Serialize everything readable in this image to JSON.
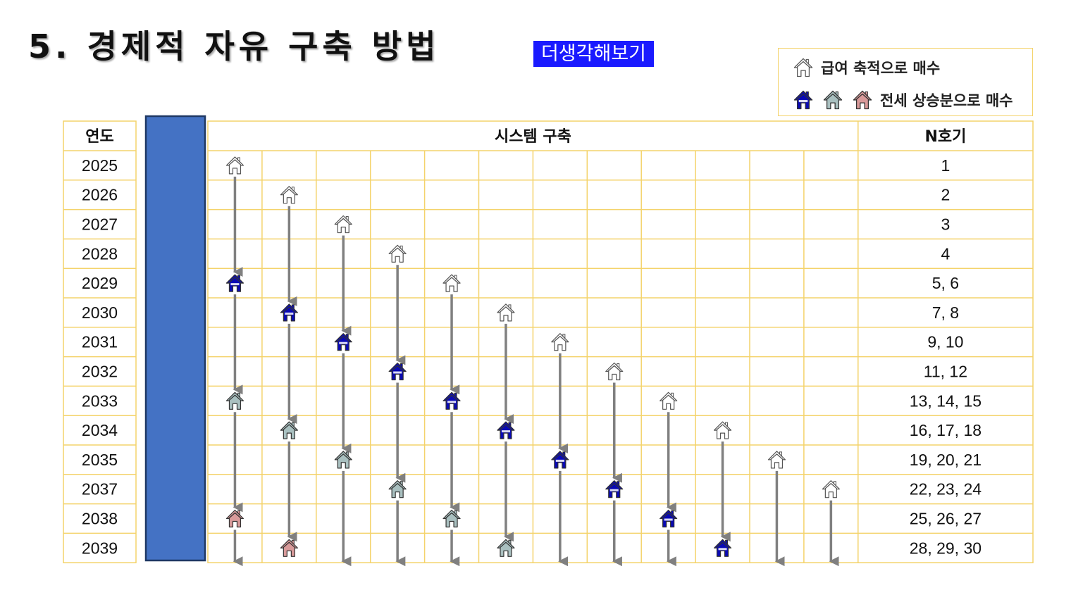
{
  "title": "5. 경제적 자유 구축 방법",
  "tag": "더생각해보기",
  "legend": {
    "row1_label": "급여 축적으로 매수",
    "row2_label": "전세 상승분으로 매수"
  },
  "colors": {
    "grid": "#f4d36b",
    "arrow": "#808080",
    "blue_bar": "#4472c4",
    "blue_bar_border": "#1f3864",
    "tag_bg": "#1a1aff",
    "house_white": "#ffffff",
    "house_navy": "#0a0ab4",
    "house_gray": "#a9c0c0",
    "house_pink": "#d99a9a"
  },
  "table": {
    "header_year": "연도",
    "header_system": "시스템 구축",
    "header_n": "N호기",
    "years": [
      "2025",
      "2026",
      "2027",
      "2028",
      "2029",
      "2030",
      "2031",
      "2032",
      "2033",
      "2034",
      "2035",
      "2037",
      "2038",
      "2039"
    ],
    "n_values": [
      "1",
      "2",
      "3",
      "4",
      "5, 6",
      "7, 8",
      "9, 10",
      "11, 12",
      "13, 14, 15",
      "16, 17, 18",
      "19, 20, 21",
      "22, 23, 24",
      "25, 26, 27",
      "28, 29, 30"
    ]
  },
  "icons": [
    {
      "col": 0,
      "row": 0,
      "type": "white"
    },
    {
      "col": 0,
      "row": 4,
      "type": "navy"
    },
    {
      "col": 0,
      "row": 8,
      "type": "gray"
    },
    {
      "col": 0,
      "row": 12,
      "type": "pink"
    },
    {
      "col": 1,
      "row": 1,
      "type": "white"
    },
    {
      "col": 1,
      "row": 5,
      "type": "navy"
    },
    {
      "col": 1,
      "row": 9,
      "type": "gray"
    },
    {
      "col": 1,
      "row": 13,
      "type": "pink"
    },
    {
      "col": 2,
      "row": 2,
      "type": "white"
    },
    {
      "col": 2,
      "row": 6,
      "type": "navy"
    },
    {
      "col": 2,
      "row": 10,
      "type": "gray"
    },
    {
      "col": 3,
      "row": 3,
      "type": "white"
    },
    {
      "col": 3,
      "row": 7,
      "type": "navy"
    },
    {
      "col": 3,
      "row": 11,
      "type": "gray"
    },
    {
      "col": 4,
      "row": 4,
      "type": "white"
    },
    {
      "col": 4,
      "row": 8,
      "type": "navy"
    },
    {
      "col": 4,
      "row": 12,
      "type": "gray"
    },
    {
      "col": 5,
      "row": 5,
      "type": "white"
    },
    {
      "col": 5,
      "row": 9,
      "type": "navy"
    },
    {
      "col": 5,
      "row": 13,
      "type": "gray"
    },
    {
      "col": 6,
      "row": 6,
      "type": "white"
    },
    {
      "col": 6,
      "row": 10,
      "type": "navy"
    },
    {
      "col": 7,
      "row": 7,
      "type": "white"
    },
    {
      "col": 7,
      "row": 11,
      "type": "navy"
    },
    {
      "col": 8,
      "row": 8,
      "type": "white"
    },
    {
      "col": 8,
      "row": 12,
      "type": "navy"
    },
    {
      "col": 9,
      "row": 9,
      "type": "white"
    },
    {
      "col": 9,
      "row": 13,
      "type": "navy"
    },
    {
      "col": 10,
      "row": 10,
      "type": "white"
    },
    {
      "col": 11,
      "row": 11,
      "type": "white"
    }
  ]
}
